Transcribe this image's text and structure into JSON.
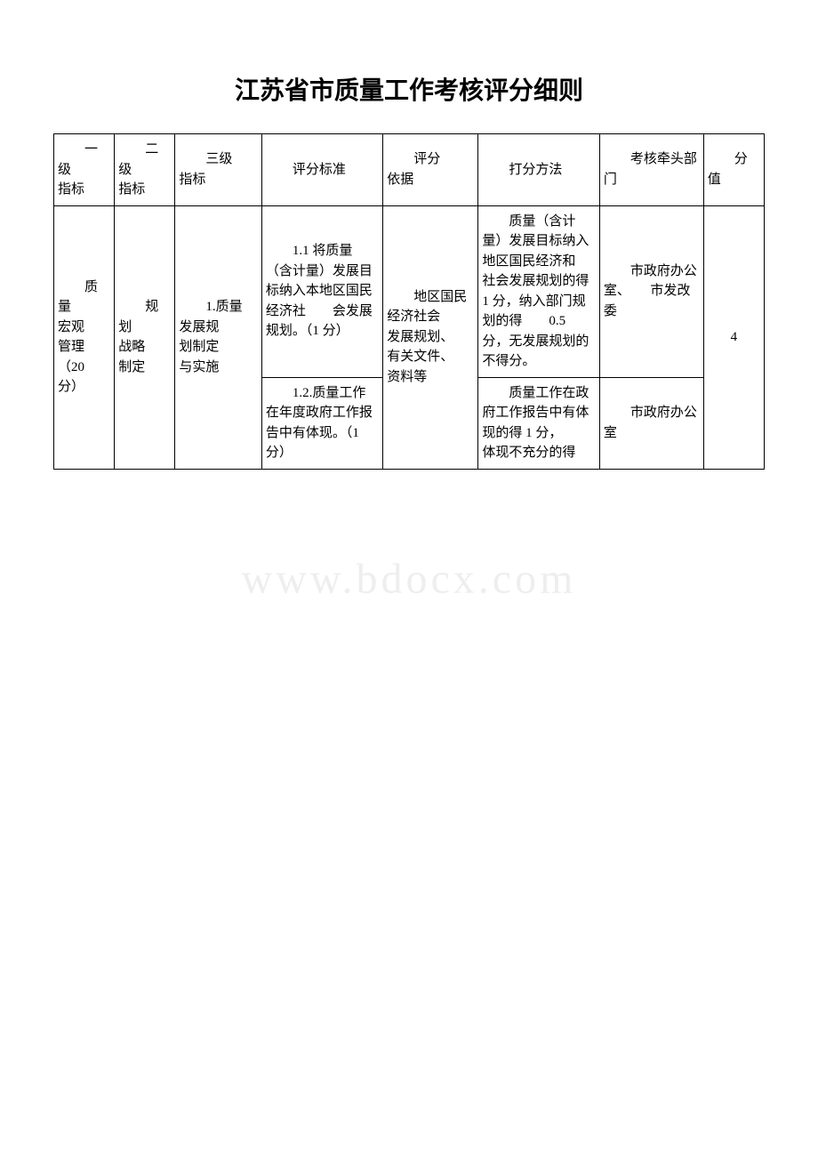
{
  "title": "江苏省市质量工作考核评分细则",
  "watermark": "www.bdocx.com",
  "headers": {
    "col1": "一级指标",
    "col2": "二级指标",
    "col3": "三级指标",
    "col4": "评分标准",
    "col5": "评分依据",
    "col6": "打分方法",
    "col7": "考核牵头部门",
    "col8": "分值"
  },
  "rows": {
    "level1": "质量宏观管理（20分）",
    "level2": "规划战略制定",
    "level3": "1.质量发展规划制定与实施",
    "r1": {
      "standard": "1.1 将质量（含计量）发展目标纳入本地区国民经济社会发展规划。（1 分）",
      "basis": "地区国民经济社会发展规划、有关文件、资料等",
      "method": "质量（含计量）发展目标纳入地区国民经济和社会发展规划的得 1 分，纳入部门规划的得0.5 分，无发展规划的不得分。",
      "dept": "市政府办公室、市发改委",
      "score": "4"
    },
    "r2": {
      "standard": "1.2.质量工作在年度政府工作报告中有体现。（1分）",
      "method": "质量工作在政府工作报告中有体现的得 1 分，体现不充分的得",
      "dept": "市政府办公室"
    }
  }
}
